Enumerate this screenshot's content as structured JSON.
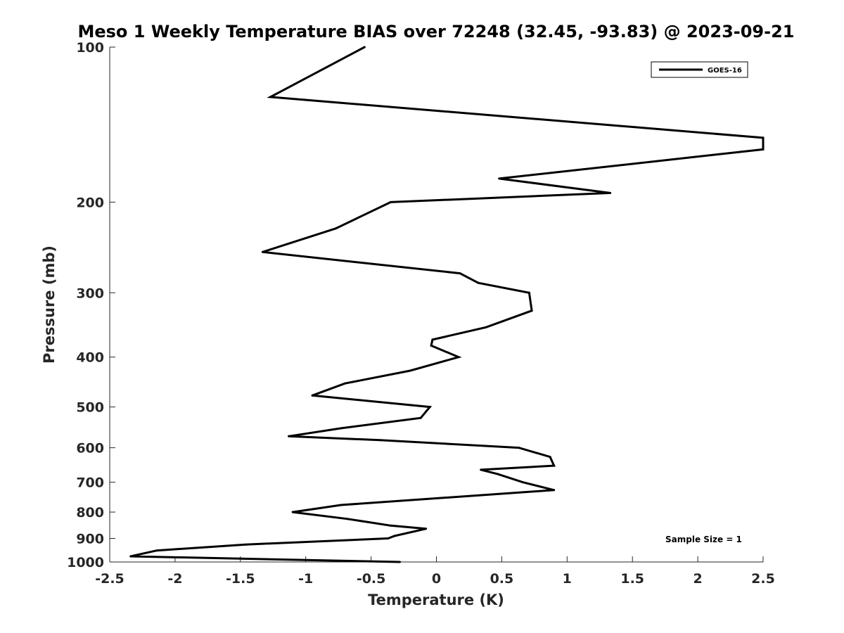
{
  "chart_data": {
    "type": "line",
    "title": "Meso 1 Weekly Temperature BIAS over 72248 (32.45, -93.83) @ 2023-09-21",
    "xlabel": "Temperature (K)",
    "ylabel": "Pressure (mb)",
    "xlim": [
      -2.5,
      2.5
    ],
    "ylim": [
      100,
      1000
    ],
    "y_scale": "log",
    "y_reversed": true,
    "x_ticks": [
      -2.5,
      -2,
      -1.5,
      -1,
      -0.5,
      0,
      0.5,
      1,
      1.5,
      2,
      2.5
    ],
    "x_tick_labels": [
      "-2.5",
      "-2",
      "-1.5",
      "-1",
      "-0.5",
      "0",
      "0.5",
      "1",
      "1.5",
      "2",
      "2.5"
    ],
    "y_ticks": [
      100,
      200,
      300,
      400,
      500,
      600,
      700,
      800,
      900,
      1000
    ],
    "y_tick_labels": [
      "100",
      "200",
      "300",
      "400",
      "500",
      "600",
      "700",
      "800",
      "900",
      "1000"
    ],
    "grid": false,
    "legend_position": "top-right",
    "annotation": "Sample Size = 1",
    "series": [
      {
        "name": "GOES-16",
        "color": "#000000",
        "points": [
          [
            -0.55,
            100
          ],
          [
            -1.27,
            125
          ],
          [
            2.5,
            150
          ],
          [
            2.5,
            158
          ],
          [
            0.48,
            180
          ],
          [
            1.33,
            192
          ],
          [
            -0.35,
            200
          ],
          [
            -0.77,
            225
          ],
          [
            -1.33,
            250
          ],
          [
            0.18,
            275
          ],
          [
            0.32,
            287
          ],
          [
            0.71,
            300
          ],
          [
            0.73,
            325
          ],
          [
            0.38,
            350
          ],
          [
            -0.03,
            370
          ],
          [
            -0.04,
            380
          ],
          [
            0.17,
            400
          ],
          [
            -0.2,
            425
          ],
          [
            -0.7,
            450
          ],
          [
            -0.95,
            475
          ],
          [
            -0.05,
            500
          ],
          [
            -0.12,
            525
          ],
          [
            -0.73,
            550
          ],
          [
            -1.13,
            570
          ],
          [
            -0.43,
            580
          ],
          [
            0.63,
            600
          ],
          [
            0.87,
            625
          ],
          [
            0.9,
            650
          ],
          [
            0.34,
            662
          ],
          [
            0.47,
            675
          ],
          [
            0.66,
            700
          ],
          [
            0.9,
            725
          ],
          [
            -0.73,
            775
          ],
          [
            -1.1,
            800
          ],
          [
            -0.68,
            825
          ],
          [
            -0.35,
            850
          ],
          [
            -0.08,
            862
          ],
          [
            -0.32,
            890
          ],
          [
            -0.37,
            900
          ],
          [
            -1.46,
            925
          ],
          [
            -2.14,
            950
          ],
          [
            -2.34,
            975
          ],
          [
            -0.28,
            1000
          ]
        ]
      }
    ]
  }
}
